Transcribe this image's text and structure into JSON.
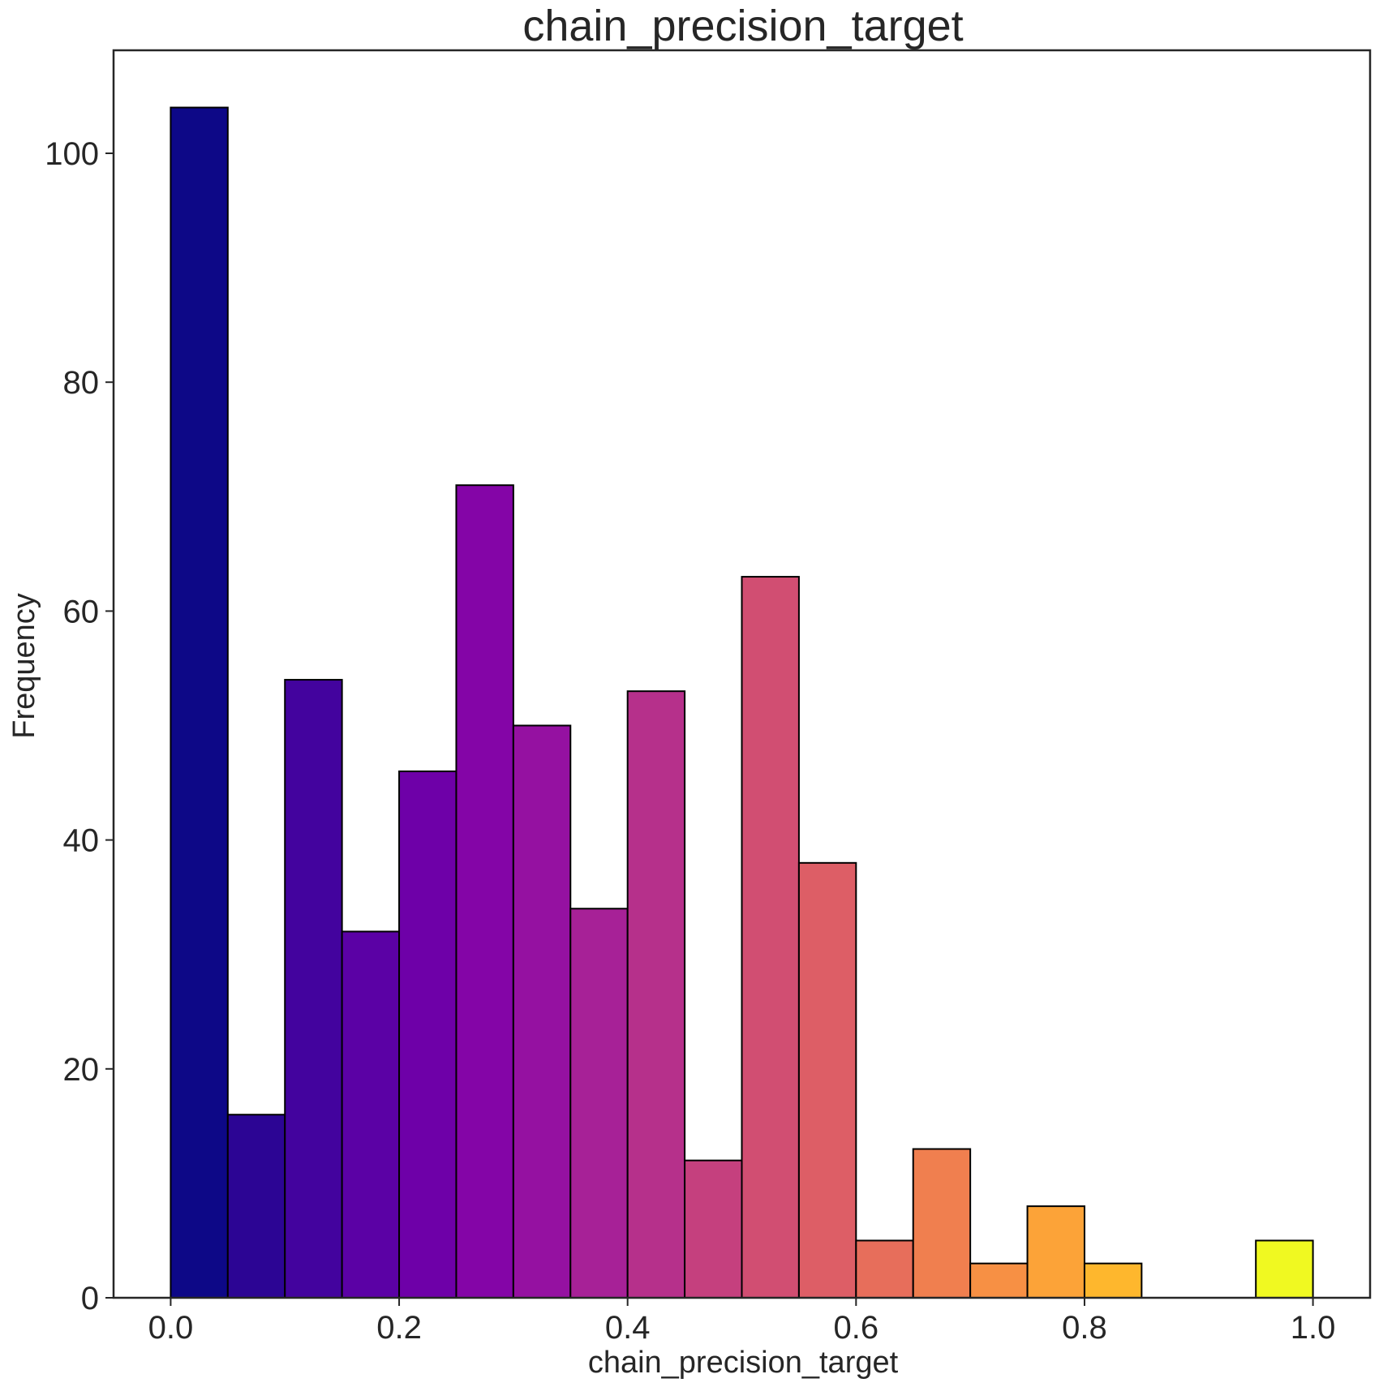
{
  "chart_data": {
    "type": "bar",
    "title": "chain_precision_target",
    "xlabel": "chain_precision_target",
    "ylabel": "Frequency",
    "xlim": [
      -0.05,
      1.05
    ],
    "ylim": [
      0,
      109
    ],
    "xticks": [
      0.0,
      0.2,
      0.4,
      0.6,
      0.8,
      1.0
    ],
    "xtick_labels": [
      "0.0",
      "0.2",
      "0.4",
      "0.6",
      "0.8",
      "1.0"
    ],
    "yticks": [
      0,
      20,
      40,
      60,
      80,
      100
    ],
    "ytick_labels": [
      "0",
      "20",
      "40",
      "60",
      "80",
      "100"
    ],
    "grid": false,
    "bin_edges": [
      0.0,
      0.05,
      0.1,
      0.15,
      0.2,
      0.25,
      0.3,
      0.35,
      0.4,
      0.45,
      0.5,
      0.55,
      0.6,
      0.65,
      0.7,
      0.75,
      0.8,
      0.85,
      0.9,
      0.95,
      1.0
    ],
    "values": [
      104,
      16,
      54,
      32,
      46,
      71,
      50,
      34,
      53,
      12,
      63,
      38,
      5,
      13,
      3,
      8,
      3,
      0,
      0,
      5
    ],
    "colors": [
      "#0d0887",
      "#2c0594",
      "#43039e",
      "#5b01a5",
      "#6e00a8",
      "#8405a7",
      "#9511a1",
      "#a72197",
      "#b6308b",
      "#c5407e",
      "#d14e72",
      "#dd5e66",
      "#e76e5b",
      "#f07f4f",
      "#f79044",
      "#fca338",
      "#feb72d",
      "#fccd25",
      "#f7e225",
      "#f0f921"
    ],
    "edge_color": "#000000",
    "axis_color": "#262626"
  }
}
